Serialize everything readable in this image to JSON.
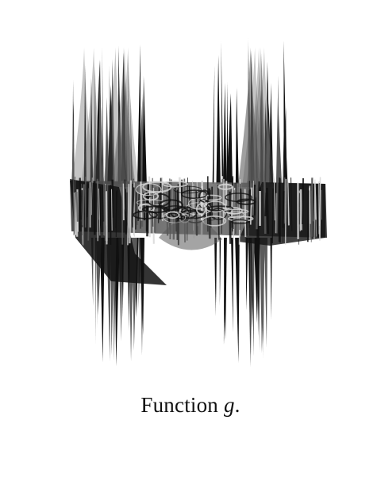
{
  "caption": {
    "prefix": "Function ",
    "variable": "g",
    "suffix": "."
  },
  "figure": {
    "kind": "3d-surface-render",
    "description_colors": {
      "ink": "#111111",
      "mid": "#5a5a5a",
      "light": "#d8d8d8",
      "background": "#ffffff"
    }
  }
}
